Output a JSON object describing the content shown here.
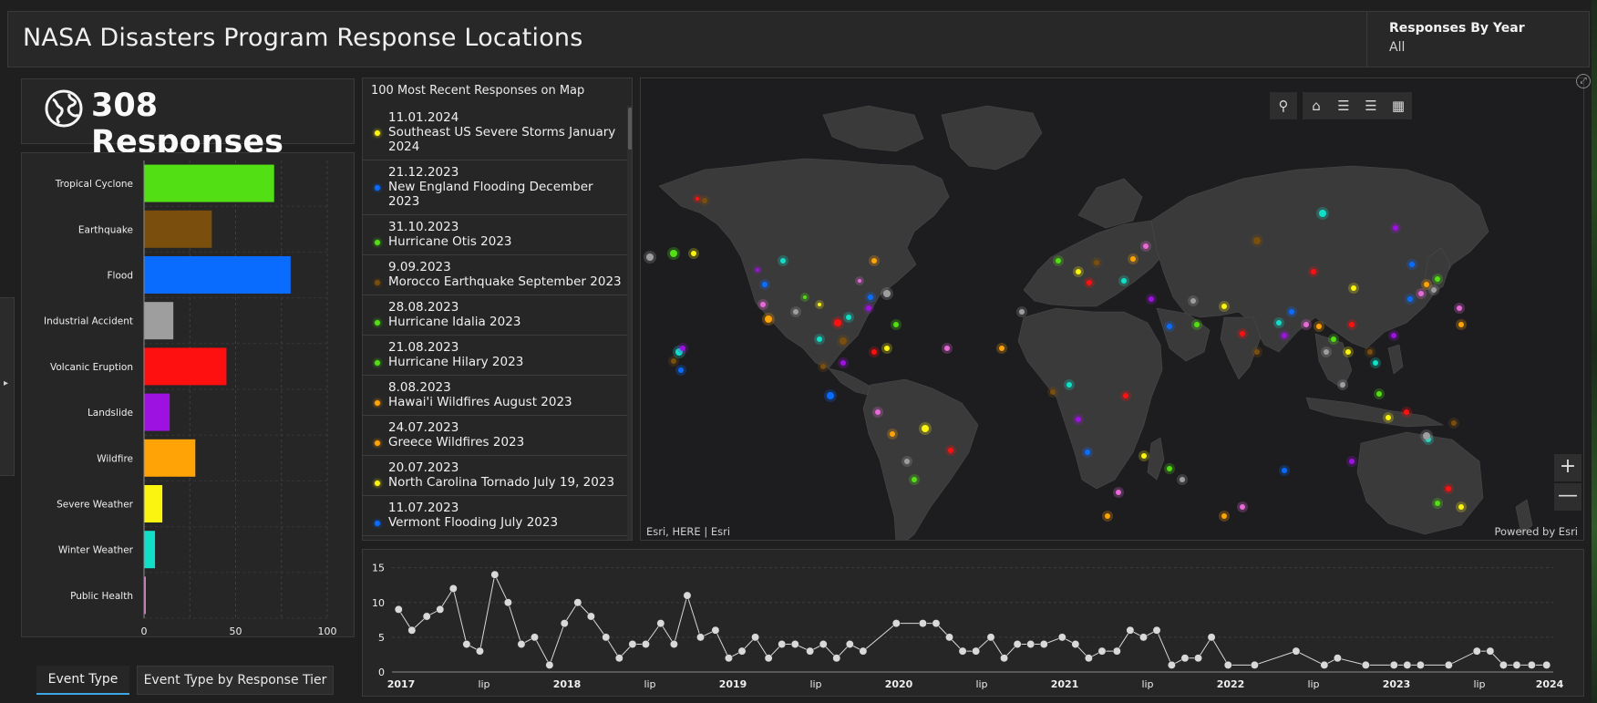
{
  "header": {
    "title": "NASA Disasters Program Response Locations",
    "filter_label": "Responses By Year",
    "filter_value": "All"
  },
  "kpi": {
    "value_text": "308 Responses",
    "icon": "globe-icon"
  },
  "chart_data": [
    {
      "type": "bar",
      "orientation": "horizontal",
      "categories": [
        "Tropical Cyclone",
        "Earthquake",
        "Flood",
        "Industrial Accident",
        "Volcanic Eruption",
        "Landslide",
        "Wildfire",
        "Severe Weather",
        "Winter Weather",
        "Public Health"
      ],
      "values": [
        71,
        37,
        80,
        16,
        45,
        14,
        28,
        10,
        6,
        1
      ],
      "colors": [
        "#52e014",
        "#7a4e0d",
        "#0a6cff",
        "#9e9e9e",
        "#ff1010",
        "#9d12e0",
        "#ffa306",
        "#fbf310",
        "#12dfc8",
        "#e86ad8"
      ],
      "xlim": [
        0,
        100
      ],
      "xticks": [
        0,
        50,
        100
      ],
      "grid": true
    },
    {
      "type": "line",
      "x_labels": [
        "2017",
        "lip",
        "2018",
        "lip",
        "2019",
        "lip",
        "2020",
        "lip",
        "2021",
        "lip",
        "2022",
        "lip",
        "2023",
        "lip",
        "2024"
      ],
      "x_label_bold": [
        true,
        false,
        true,
        false,
        true,
        false,
        true,
        false,
        true,
        false,
        true,
        false,
        true,
        false,
        true
      ],
      "yticks": [
        0,
        5,
        10,
        15
      ],
      "ylim": [
        0,
        16
      ],
      "x_range": [
        2017.0,
        2024.0
      ],
      "series": [
        {
          "points": [
            [
              2017.04,
              9
            ],
            [
              2017.12,
              6
            ],
            [
              2017.21,
              8
            ],
            [
              2017.29,
              9
            ],
            [
              2017.37,
              12
            ],
            [
              2017.45,
              4
            ],
            [
              2017.53,
              3
            ],
            [
              2017.62,
              14
            ],
            [
              2017.7,
              10
            ],
            [
              2017.78,
              4
            ],
            [
              2017.86,
              5
            ],
            [
              2017.95,
              1
            ],
            [
              2018.04,
              7
            ],
            [
              2018.12,
              10
            ],
            [
              2018.2,
              8
            ],
            [
              2018.29,
              5
            ],
            [
              2018.37,
              2
            ],
            [
              2018.45,
              4
            ],
            [
              2018.53,
              4
            ],
            [
              2018.62,
              7
            ],
            [
              2018.7,
              4
            ],
            [
              2018.78,
              11
            ],
            [
              2018.86,
              5
            ],
            [
              2018.95,
              6
            ],
            [
              2019.03,
              2
            ],
            [
              2019.11,
              3
            ],
            [
              2019.19,
              5
            ],
            [
              2019.27,
              2
            ],
            [
              2019.35,
              4
            ],
            [
              2019.43,
              4
            ],
            [
              2019.52,
              3
            ],
            [
              2019.6,
              4
            ],
            [
              2019.68,
              2
            ],
            [
              2019.76,
              4
            ],
            [
              2019.84,
              3
            ],
            [
              2020.04,
              7
            ],
            [
              2020.2,
              7
            ],
            [
              2020.28,
              7
            ],
            [
              2020.36,
              5
            ],
            [
              2020.44,
              3
            ],
            [
              2020.52,
              3
            ],
            [
              2020.61,
              5
            ],
            [
              2020.69,
              2
            ],
            [
              2020.77,
              4
            ],
            [
              2020.85,
              4
            ],
            [
              2020.93,
              4
            ],
            [
              2021.04,
              5
            ],
            [
              2021.12,
              4
            ],
            [
              2021.2,
              2
            ],
            [
              2021.28,
              3
            ],
            [
              2021.37,
              3
            ],
            [
              2021.45,
              6
            ],
            [
              2021.53,
              5
            ],
            [
              2021.61,
              6
            ],
            [
              2021.7,
              1
            ],
            [
              2021.78,
              2
            ],
            [
              2021.86,
              2
            ],
            [
              2021.94,
              5
            ],
            [
              2022.04,
              1
            ],
            [
              2022.2,
              1
            ],
            [
              2022.45,
              3
            ],
            [
              2022.62,
              1
            ],
            [
              2022.7,
              2
            ],
            [
              2022.87,
              1
            ],
            [
              2023.04,
              1
            ],
            [
              2023.12,
              1
            ],
            [
              2023.2,
              1
            ],
            [
              2023.37,
              1
            ],
            [
              2023.54,
              3
            ],
            [
              2023.62,
              3
            ],
            [
              2023.7,
              1
            ],
            [
              2023.78,
              1
            ],
            [
              2023.87,
              1
            ],
            [
              2023.96,
              1
            ]
          ]
        }
      ],
      "color": "#d8d8d8",
      "grid": true
    }
  ],
  "tabs": [
    {
      "label": "Event Type",
      "active": true
    },
    {
      "label": "Event Type by Response Tier",
      "active": false
    }
  ],
  "list": {
    "title": "100 Most Recent Responses on Map",
    "items": [
      {
        "date": "11.01.2024",
        "title": "Southeast US Severe Storms January 2024",
        "color": "#fbf310"
      },
      {
        "date": "21.12.2023",
        "title": "New England Flooding December 2023",
        "color": "#0a6cff"
      },
      {
        "date": "31.10.2023",
        "title": "Hurricane Otis 2023",
        "color": "#52e014"
      },
      {
        "date": "9.09.2023",
        "title": "Morocco Earthquake September 2023",
        "color": "#7a4e0d"
      },
      {
        "date": "28.08.2023",
        "title": "Hurricane Idalia 2023",
        "color": "#52e014"
      },
      {
        "date": "21.08.2023",
        "title": "Hurricane Hilary 2023",
        "color": "#52e014"
      },
      {
        "date": "8.08.2023",
        "title": "Hawai'i Wildfires August 2023",
        "color": "#ffa306"
      },
      {
        "date": "24.07.2023",
        "title": "Greece Wildfires 2023",
        "color": "#ffa306"
      },
      {
        "date": "20.07.2023",
        "title": "North Carolina Tornado July 19, 2023",
        "color": "#fbf310"
      },
      {
        "date": "11.07.2023",
        "title": "Vermont Flooding July 2023",
        "color": "#0a6cff"
      }
    ]
  },
  "map": {
    "attribution": "Esri, HERE | Esri",
    "powered_by": "Powered by Esri",
    "tools": [
      "search-icon",
      "home-icon",
      "legend-list-icon",
      "layers-icon",
      "qr-code-icon"
    ],
    "zoom_in_label": "+",
    "zoom_out_label": "—"
  }
}
